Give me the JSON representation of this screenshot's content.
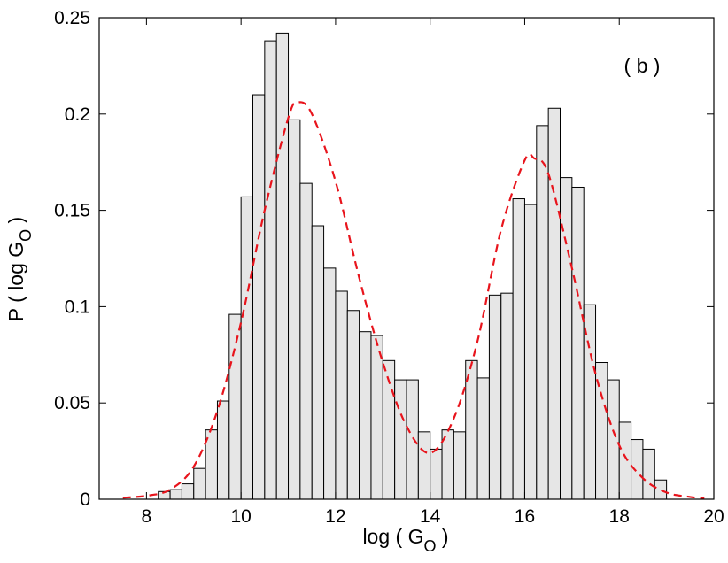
{
  "chart_data": {
    "type": "bar",
    "panel_label": "( b )",
    "xlabel": {
      "main": "log ( G",
      "sub": "O",
      "close": " )"
    },
    "ylabel": {
      "main": "P ( log G",
      "sub": "O",
      "close": " )"
    },
    "xlim": [
      7,
      20
    ],
    "ylim": [
      0,
      0.25
    ],
    "x_ticks": [
      8,
      10,
      12,
      14,
      16,
      18,
      20
    ],
    "y_ticks": [
      0,
      0.05,
      0.1,
      0.15,
      0.2,
      0.25
    ],
    "y_tick_labels": [
      "0",
      "0.05",
      "0.1",
      "0.15",
      "0.2",
      "0.25"
    ],
    "bin_width": 0.25,
    "bins_start": [
      8.25,
      8.5,
      8.75,
      9.0,
      9.25,
      9.5,
      9.75,
      10.0,
      10.25,
      10.5,
      10.75,
      11.0,
      11.25,
      11.5,
      11.75,
      12.0,
      12.25,
      12.5,
      12.75,
      13.0,
      13.25,
      13.5,
      13.75,
      14.0,
      14.25,
      14.5,
      14.75,
      15.0,
      15.25,
      15.5,
      15.75,
      16.0,
      16.25,
      16.5,
      16.75,
      17.0,
      17.25,
      17.5,
      17.75,
      18.0,
      18.25,
      18.5,
      18.75
    ],
    "values": [
      0.004,
      0.005,
      0.008,
      0.016,
      0.036,
      0.051,
      0.096,
      0.157,
      0.21,
      0.238,
      0.242,
      0.197,
      0.164,
      0.142,
      0.12,
      0.108,
      0.098,
      0.087,
      0.085,
      0.072,
      0.062,
      0.062,
      0.035,
      0.026,
      0.036,
      0.035,
      0.072,
      0.063,
      0.106,
      0.107,
      0.156,
      0.153,
      0.194,
      0.203,
      0.167,
      0.162,
      0.101,
      0.071,
      0.062,
      0.04,
      0.031,
      0.026,
      0.01
    ],
    "fit_curve": {
      "style": "dashed",
      "color": "#e8141c",
      "x": [
        7.5,
        8.0,
        8.5,
        9.0,
        9.5,
        10.0,
        10.5,
        11.0,
        11.2,
        11.5,
        12.0,
        12.5,
        13.0,
        13.5,
        14.0,
        14.5,
        15.0,
        15.5,
        16.0,
        16.2,
        16.5,
        17.0,
        17.5,
        18.0,
        18.5,
        19.0,
        19.5,
        19.8
      ],
      "y": [
        0.0008,
        0.0018,
        0.005,
        0.017,
        0.046,
        0.092,
        0.15,
        0.198,
        0.206,
        0.2,
        0.165,
        0.115,
        0.071,
        0.038,
        0.024,
        0.042,
        0.082,
        0.14,
        0.176,
        0.177,
        0.169,
        0.12,
        0.065,
        0.028,
        0.011,
        0.0035,
        0.0012,
        0.0005
      ]
    },
    "bar_fill": "#e6e6e6",
    "bar_stroke": "#000000",
    "grid": false,
    "legend": "none"
  }
}
